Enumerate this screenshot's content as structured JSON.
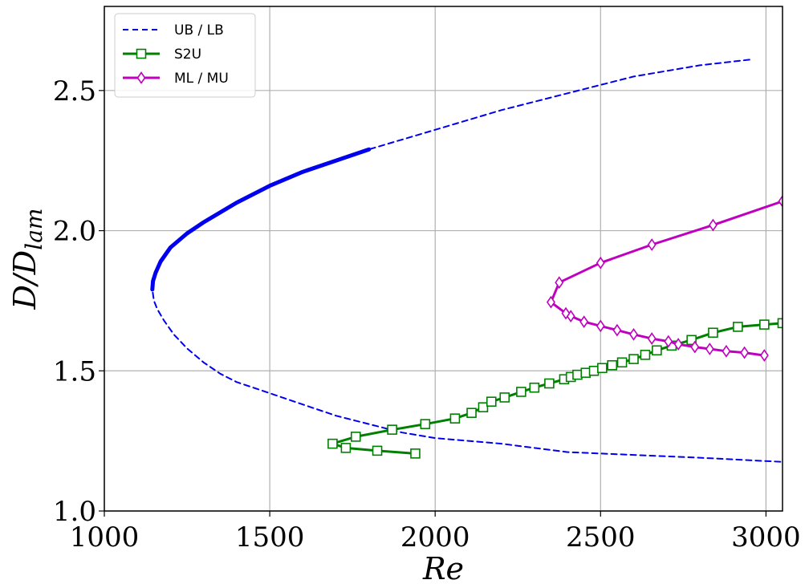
{
  "chart_data": {
    "type": "line",
    "title": "",
    "xlabel": "Re",
    "ylabel": "D/D_lam",
    "ylabel_main": "D/D",
    "ylabel_sub": "lam",
    "xlim": [
      1000,
      3050
    ],
    "ylim": [
      1.0,
      2.8
    ],
    "xticks": [
      1000,
      1500,
      2000,
      2500,
      3000
    ],
    "yticks": [
      1.0,
      1.5,
      2.0,
      2.5
    ],
    "xtick_labels": [
      "1000",
      "1500",
      "2000",
      "2500",
      "3000"
    ],
    "ytick_labels": [
      "1.0",
      "1.5",
      "2.0",
      "2.5"
    ],
    "grid": true,
    "legend_position": "top-left",
    "series": [
      {
        "name": "UB / LB",
        "color": "#0000ee",
        "style": "dashed",
        "marker": "none",
        "x": [
          2950,
          2800,
          2600,
          2400,
          2200,
          2000,
          1800,
          1700,
          1600,
          1500,
          1400,
          1300,
          1250,
          1200,
          1170,
          1155,
          1147,
          1145,
          1150,
          1160,
          1180,
          1210,
          1250,
          1300,
          1350,
          1400,
          1450,
          1500,
          1600,
          1700,
          1800,
          1900,
          2000,
          2200,
          2400,
          2600,
          2800,
          3050
        ],
        "y": [
          2.61,
          2.59,
          2.55,
          2.49,
          2.43,
          2.36,
          2.29,
          2.25,
          2.21,
          2.16,
          2.1,
          2.03,
          1.99,
          1.94,
          1.89,
          1.85,
          1.82,
          1.79,
          1.75,
          1.72,
          1.68,
          1.63,
          1.58,
          1.53,
          1.49,
          1.46,
          1.44,
          1.42,
          1.38,
          1.34,
          1.31,
          1.28,
          1.26,
          1.24,
          1.21,
          1.2,
          1.19,
          1.175
        ]
      },
      {
        "name": "",
        "color": "#0000ee",
        "style": "solid-thick",
        "marker": "none",
        "x": [
          1800,
          1700,
          1600,
          1500,
          1400,
          1300,
          1250,
          1200,
          1170,
          1155,
          1147,
          1145
        ],
        "y": [
          2.29,
          2.25,
          2.21,
          2.16,
          2.1,
          2.03,
          1.99,
          1.94,
          1.89,
          1.85,
          1.82,
          1.79
        ]
      },
      {
        "name": "S2U",
        "color": "#008000",
        "style": "solid",
        "marker": "square",
        "x": [
          1940,
          1825,
          1730,
          1690,
          1760,
          1870,
          1970,
          2060,
          2110,
          2145,
          2170,
          2210,
          2260,
          2300,
          2345,
          2390,
          2410,
          2430,
          2455,
          2480,
          2505,
          2535,
          2565,
          2600,
          2635,
          2670,
          2715,
          2775,
          2840,
          2915,
          2995,
          3050
        ],
        "y": [
          1.205,
          1.215,
          1.225,
          1.24,
          1.265,
          1.29,
          1.31,
          1.33,
          1.35,
          1.37,
          1.39,
          1.405,
          1.425,
          1.44,
          1.455,
          1.47,
          1.478,
          1.486,
          1.493,
          1.5,
          1.51,
          1.52,
          1.53,
          1.542,
          1.557,
          1.573,
          1.59,
          1.61,
          1.636,
          1.657,
          1.665,
          1.67
        ]
      },
      {
        "name": "ML / MU",
        "color": "#bf00bf",
        "style": "solid",
        "marker": "diamond",
        "x": [
          2995,
          2935,
          2880,
          2830,
          2785,
          2735,
          2705,
          2655,
          2600,
          2550,
          2500,
          2450,
          2410,
          2395,
          2350,
          2375,
          2500,
          2655,
          2840,
          3050
        ],
        "y": [
          1.555,
          1.565,
          1.57,
          1.578,
          1.585,
          1.595,
          1.605,
          1.615,
          1.63,
          1.645,
          1.66,
          1.675,
          1.695,
          1.705,
          1.745,
          1.815,
          1.885,
          1.95,
          2.02,
          2.105
        ]
      }
    ]
  }
}
